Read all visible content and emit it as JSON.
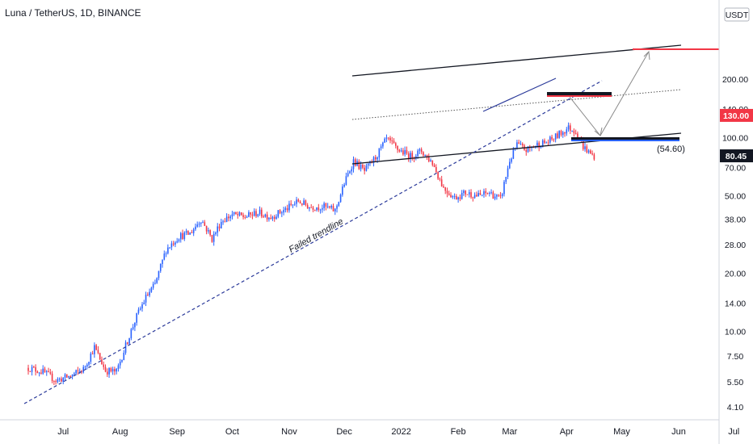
{
  "chart_data": {
    "type": "candlestick",
    "title": "Luna / TetherUS, 1D, BINANCE",
    "y_scale": "log",
    "y_unit": "USDT",
    "y_ticks": [
      "200.00",
      "140.00",
      "100.00",
      "70.00",
      "50.00",
      "38.00",
      "28.00",
      "20.00",
      "14.00",
      "10.00",
      "7.50",
      "5.50",
      "4.10"
    ],
    "x_ticks": [
      "Jul",
      "Aug",
      "Sep",
      "Oct",
      "Nov",
      "Dec",
      "2022",
      "Feb",
      "Mar",
      "Apr",
      "May",
      "Jun",
      "Jul"
    ],
    "price_path": [
      [
        "2021-06-12",
        6.5
      ],
      [
        "2021-06-20",
        6.2
      ],
      [
        "2021-06-27",
        5.6
      ],
      [
        "2021-07-05",
        5.9
      ],
      [
        "2021-07-12",
        6.4
      ],
      [
        "2021-07-18",
        8.3
      ],
      [
        "2021-07-24",
        6.3
      ],
      [
        "2021-07-30",
        6.2
      ],
      [
        "2021-08-05",
        9.0
      ],
      [
        "2021-08-10",
        12.0
      ],
      [
        "2021-08-15",
        15.0
      ],
      [
        "2021-08-20",
        17.5
      ],
      [
        "2021-08-26",
        26.5
      ],
      [
        "2021-09-02",
        31.0
      ],
      [
        "2021-09-08",
        32.0
      ],
      [
        "2021-09-14",
        38.0
      ],
      [
        "2021-09-20",
        30.0
      ],
      [
        "2021-09-25",
        37.0
      ],
      [
        "2021-10-01",
        40.0
      ],
      [
        "2021-10-08",
        39.0
      ],
      [
        "2021-10-15",
        41.0
      ],
      [
        "2021-10-22",
        39.0
      ],
      [
        "2021-10-30",
        42.5
      ],
      [
        "2021-11-06",
        47.0
      ],
      [
        "2021-11-12",
        44.0
      ],
      [
        "2021-11-20",
        44.0
      ],
      [
        "2021-11-26",
        42.0
      ],
      [
        "2021-12-01",
        58.0
      ],
      [
        "2021-12-06",
        76.0
      ],
      [
        "2021-12-12",
        67.0
      ],
      [
        "2021-12-18",
        79.0
      ],
      [
        "2021-12-24",
        98.0
      ],
      [
        "2021-12-30",
        87.0
      ],
      [
        "2022-01-06",
        80.0
      ],
      [
        "2022-01-12",
        85.0
      ],
      [
        "2022-01-18",
        74.0
      ],
      [
        "2022-01-24",
        55.0
      ],
      [
        "2022-01-30",
        49.0
      ],
      [
        "2022-02-05",
        52.0
      ],
      [
        "2022-02-12",
        50.0
      ],
      [
        "2022-02-18",
        52.0
      ],
      [
        "2022-02-24",
        48.0
      ],
      [
        "2022-03-01",
        76.0
      ],
      [
        "2022-03-05",
        92.0
      ],
      [
        "2022-03-10",
        86.0
      ],
      [
        "2022-03-16",
        92.0
      ],
      [
        "2022-03-22",
        95.0
      ],
      [
        "2022-03-28",
        104.0
      ],
      [
        "2022-04-02",
        112.0
      ],
      [
        "2022-04-06",
        108.0
      ],
      [
        "2022-04-10",
        90.0
      ],
      [
        "2022-04-14",
        82.0
      ],
      [
        "2022-04-16",
        80.45
      ]
    ],
    "last_price": "80.45",
    "target_price": "130.00",
    "support_label": "(54.60)",
    "annotation": "Failed trendline",
    "grid": false,
    "colors": {
      "up": "#2962ff",
      "down": "#f23645",
      "target": "#f23645",
      "last": "#131722"
    }
  }
}
